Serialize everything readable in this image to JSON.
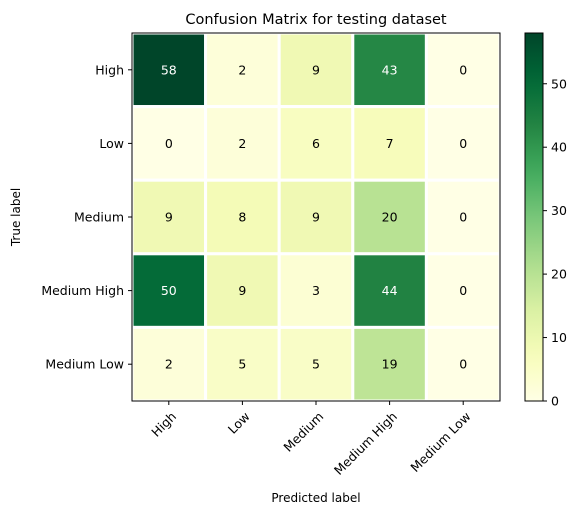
{
  "chart_data": {
    "type": "heatmap",
    "title": "Confusion Matrix for testing dataset",
    "xlabel": "Predicted label",
    "ylabel": "True label",
    "x_categories": [
      "High",
      "Low",
      "Medium",
      "Medium High",
      "Medium Low"
    ],
    "y_categories": [
      "High",
      "Low",
      "Medium",
      "Medium High",
      "Medium Low"
    ],
    "values": [
      [
        58,
        2,
        9,
        43,
        0
      ],
      [
        0,
        2,
        6,
        7,
        0
      ],
      [
        9,
        8,
        9,
        20,
        0
      ],
      [
        50,
        9,
        3,
        44,
        0
      ],
      [
        2,
        5,
        5,
        19,
        0
      ]
    ],
    "colormap": "YlGn",
    "colorbar": {
      "min": 0,
      "max": 58,
      "ticks": [
        "0",
        "10",
        "20",
        "30",
        "40",
        "50"
      ]
    },
    "cell_border_color": "#ffffff"
  }
}
